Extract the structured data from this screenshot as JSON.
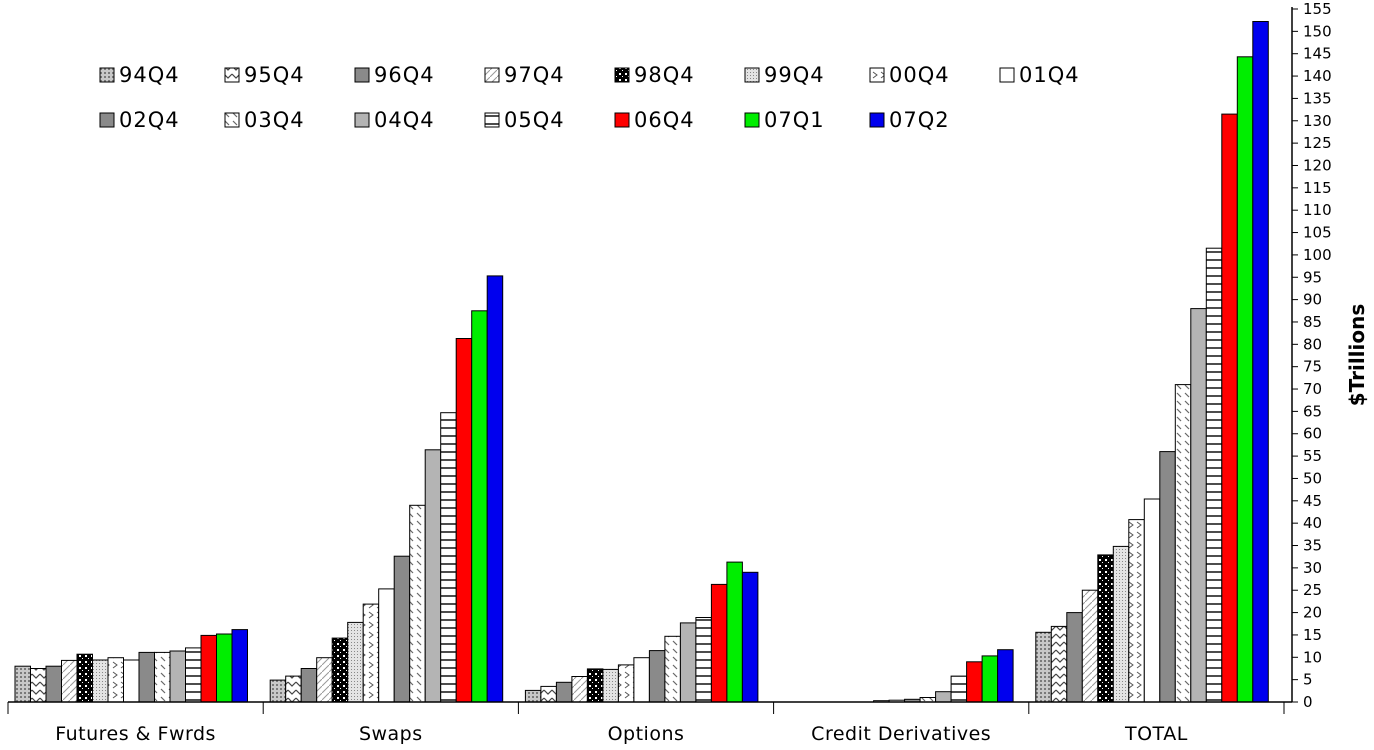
{
  "chart_data": {
    "type": "bar",
    "categories": [
      "Futures & Fwrds",
      "Swaps",
      "Options",
      "Credit Derivatives",
      "TOTAL"
    ],
    "ylabel": "$Trillions",
    "ylim": [
      0,
      155
    ],
    "ytick_step": 5,
    "grid": false,
    "legend_position": "top-left",
    "series": [
      {
        "name": "94Q4",
        "pattern": "dots-light",
        "color": "#b0b0b0",
        "values": [
          8.0,
          4.9,
          2.6,
          0.0,
          15.6
        ]
      },
      {
        "name": "95Q4",
        "pattern": "zigzag",
        "color": "#ffffff",
        "values": [
          7.5,
          5.8,
          3.5,
          0.0,
          16.9
        ]
      },
      {
        "name": "96Q4",
        "pattern": "solid",
        "color": "#8a8a8a",
        "values": [
          8.0,
          7.5,
          4.4,
          0.0,
          20.0
        ]
      },
      {
        "name": "97Q4",
        "pattern": "diagonal-light",
        "color": "#ffffff",
        "values": [
          9.3,
          9.9,
          5.7,
          0.0,
          25.0
        ]
      },
      {
        "name": "98Q4",
        "pattern": "checker-dark",
        "color": "#000000",
        "values": [
          10.7,
          14.3,
          7.4,
          0.0,
          32.9
        ]
      },
      {
        "name": "99Q4",
        "pattern": "dots-fine",
        "color": "#d0d0d0",
        "values": [
          9.4,
          17.8,
          7.3,
          0.0,
          34.8
        ]
      },
      {
        "name": "00Q4",
        "pattern": "zigzag-sparse",
        "color": "#ffffff",
        "values": [
          9.9,
          21.9,
          8.3,
          0.3,
          40.8
        ]
      },
      {
        "name": "01Q4",
        "pattern": "white",
        "color": "#ffffff",
        "values": [
          9.4,
          25.3,
          9.9,
          0.4,
          45.4
        ]
      },
      {
        "name": "02Q4",
        "pattern": "solid",
        "color": "#8a8a8a",
        "values": [
          11.1,
          32.6,
          11.5,
          0.6,
          56.0
        ]
      },
      {
        "name": "03Q4",
        "pattern": "diagonal-dash",
        "color": "#ffffff",
        "values": [
          11.1,
          44.0,
          14.7,
          1.0,
          71.0
        ]
      },
      {
        "name": "04Q4",
        "pattern": "solid",
        "color": "#b4b4b4",
        "values": [
          11.4,
          56.4,
          17.7,
          2.3,
          88.0
        ]
      },
      {
        "name": "05Q4",
        "pattern": "horizontal-lines",
        "color": "#ffffff",
        "values": [
          12.1,
          64.7,
          18.9,
          5.8,
          101.5
        ]
      },
      {
        "name": "06Q4",
        "pattern": "solid",
        "color": "#ff0000",
        "values": [
          14.9,
          81.3,
          26.3,
          9.0,
          131.5
        ]
      },
      {
        "name": "07Q1",
        "pattern": "solid",
        "color": "#00ee00",
        "values": [
          15.2,
          87.5,
          31.3,
          10.3,
          144.3
        ]
      },
      {
        "name": "07Q2",
        "pattern": "solid",
        "color": "#0000ee",
        "values": [
          16.2,
          95.3,
          29.0,
          11.7,
          152.2
        ]
      }
    ]
  }
}
